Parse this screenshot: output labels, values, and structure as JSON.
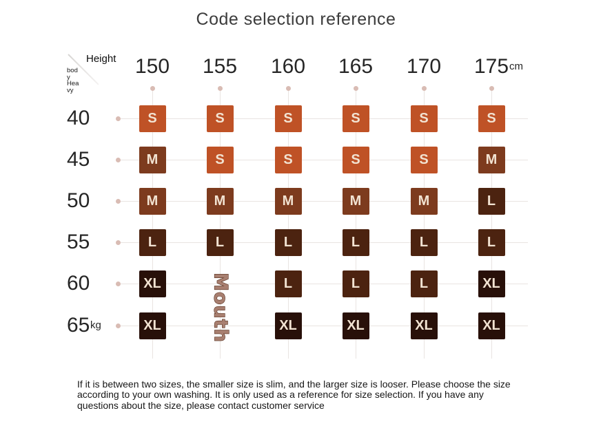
{
  "title": "Code selection reference",
  "header": {
    "height_label": "Height",
    "weight_label": "bod\ny\nHea\nvy",
    "height_unit": "cm",
    "weight_unit": "kg"
  },
  "watermark": "Mouth",
  "footer": "If it is between two sizes, the smaller size is slim, and the larger size is looser. Please choose the size according to your own washing. It is only used as a reference for size selection. If you have any questions about the size, please contact customer service",
  "colors": {
    "S": "#bf5226",
    "M": "#7d3b1e",
    "L": "#4c2310",
    "XL": "#281009",
    "cell_text": "#f2e3d2",
    "grid_line": "#e9e4e1",
    "dot": "#d9bcb4",
    "watermark_fill": "#a87f70",
    "watermark_stroke": "#56301f"
  },
  "chart_data": {
    "type": "table",
    "title": "Code selection reference",
    "xlabel": "Height",
    "ylabel": "body Heavy",
    "columns_height_cm": [
      150,
      155,
      160,
      165,
      170,
      175
    ],
    "rows_weight_kg": [
      40,
      45,
      50,
      55,
      60,
      65
    ],
    "matrix": [
      [
        "S",
        "S",
        "S",
        "S",
        "S",
        "S"
      ],
      [
        "M",
        "S",
        "S",
        "S",
        "S",
        "M"
      ],
      [
        "M",
        "M",
        "M",
        "M",
        "M",
        "L"
      ],
      [
        "L",
        "L",
        "L",
        "L",
        "L",
        "L"
      ],
      [
        "XL",
        null,
        "L",
        "L",
        "L",
        "XL"
      ],
      [
        "XL",
        null,
        "XL",
        "XL",
        "XL",
        "XL"
      ]
    ],
    "cells_hidden_by_watermark": [
      [
        60,
        155
      ],
      [
        65,
        155
      ]
    ]
  }
}
